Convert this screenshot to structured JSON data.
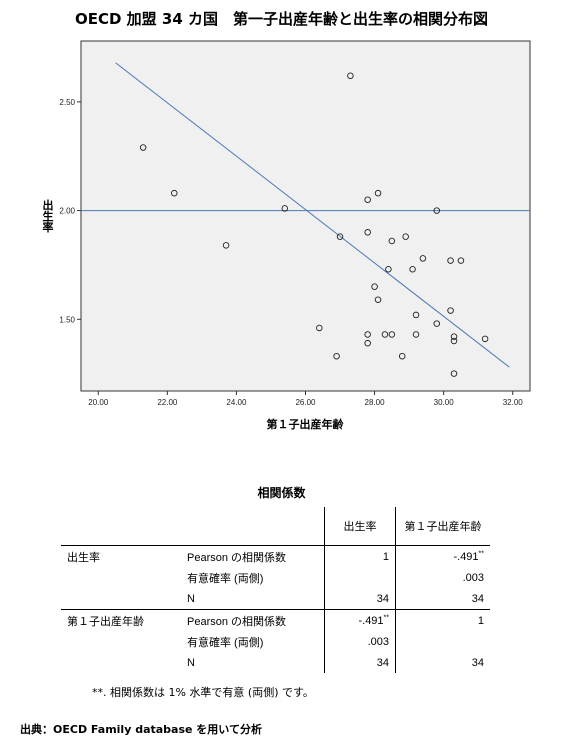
{
  "title": "OECD 加盟 34 カ国　第一子出産年齢と出生率の相関分布図",
  "chart_data": {
    "type": "scatter",
    "xlabel": "第１子出産年齢",
    "ylabel": "出生率",
    "xlim": [
      19.5,
      32.5
    ],
    "ylim": [
      1.17,
      2.78
    ],
    "xticks": [
      "20.00",
      "22.00",
      "24.00",
      "26.00",
      "28.00",
      "30.00",
      "32.00"
    ],
    "yticks": [
      "1.50",
      "2.00",
      "2.50"
    ],
    "xtick_values": [
      20,
      22,
      24,
      26,
      28,
      30,
      32
    ],
    "ytick_values": [
      1.5,
      2.0,
      2.5
    ],
    "grid": false,
    "plot_bg": "#f0f0f0",
    "line_color": "#4a7ab5",
    "reference_line": {
      "y": 2.0
    },
    "fit_line": {
      "x": [
        20.5,
        31.9
      ],
      "y": [
        2.68,
        1.28
      ]
    },
    "points": [
      {
        "x": 21.3,
        "y": 2.29
      },
      {
        "x": 22.2,
        "y": 2.08
      },
      {
        "x": 23.7,
        "y": 1.84
      },
      {
        "x": 25.4,
        "y": 2.01
      },
      {
        "x": 26.4,
        "y": 1.46
      },
      {
        "x": 26.9,
        "y": 1.33
      },
      {
        "x": 27.0,
        "y": 1.88
      },
      {
        "x": 27.3,
        "y": 2.62
      },
      {
        "x": 27.8,
        "y": 2.05
      },
      {
        "x": 27.8,
        "y": 1.9
      },
      {
        "x": 27.8,
        "y": 1.43
      },
      {
        "x": 27.8,
        "y": 1.39
      },
      {
        "x": 28.0,
        "y": 1.65
      },
      {
        "x": 28.1,
        "y": 2.08
      },
      {
        "x": 28.1,
        "y": 1.59
      },
      {
        "x": 28.3,
        "y": 1.43
      },
      {
        "x": 28.4,
        "y": 1.73
      },
      {
        "x": 28.5,
        "y": 1.86
      },
      {
        "x": 28.5,
        "y": 1.43
      },
      {
        "x": 28.8,
        "y": 1.33
      },
      {
        "x": 28.9,
        "y": 1.88
      },
      {
        "x": 29.1,
        "y": 1.73
      },
      {
        "x": 29.2,
        "y": 1.52
      },
      {
        "x": 29.2,
        "y": 1.43
      },
      {
        "x": 29.4,
        "y": 1.78
      },
      {
        "x": 29.8,
        "y": 2.0
      },
      {
        "x": 29.8,
        "y": 1.48
      },
      {
        "x": 30.2,
        "y": 1.77
      },
      {
        "x": 30.2,
        "y": 1.54
      },
      {
        "x": 30.3,
        "y": 1.42
      },
      {
        "x": 30.3,
        "y": 1.4
      },
      {
        "x": 30.3,
        "y": 1.25
      },
      {
        "x": 30.5,
        "y": 1.77
      },
      {
        "x": 31.2,
        "y": 1.41
      }
    ]
  },
  "table": {
    "title": "相関係数",
    "col_headers": [
      "出生率",
      "第１子出産年齢"
    ],
    "rows": [
      {
        "group": "出生率",
        "label": "Pearson の相関係数",
        "v1": "1",
        "v2": "-.491",
        "v1_sup": "",
        "v2_sup": "**"
      },
      {
        "group": "",
        "label": "有意確率 (両側)",
        "v1": "",
        "v2": ".003",
        "v1_sup": "",
        "v2_sup": ""
      },
      {
        "group": "",
        "label": "N",
        "v1": "34",
        "v2": "34",
        "v1_sup": "",
        "v2_sup": ""
      },
      {
        "group": "第１子出産年齢",
        "label": "Pearson の相関係数",
        "v1": "-.491",
        "v2": "1",
        "v1_sup": "**",
        "v2_sup": ""
      },
      {
        "group": "",
        "label": "有意確率 (両側)",
        "v1": ".003",
        "v2": "",
        "v1_sup": "",
        "v2_sup": ""
      },
      {
        "group": "",
        "label": "N",
        "v1": "34",
        "v2": "34",
        "v1_sup": "",
        "v2_sup": ""
      }
    ]
  },
  "footnote": "**. 相関係数は 1% 水準で有意 (両側) です。",
  "source": "出典：OECD Family database を用いて分析"
}
